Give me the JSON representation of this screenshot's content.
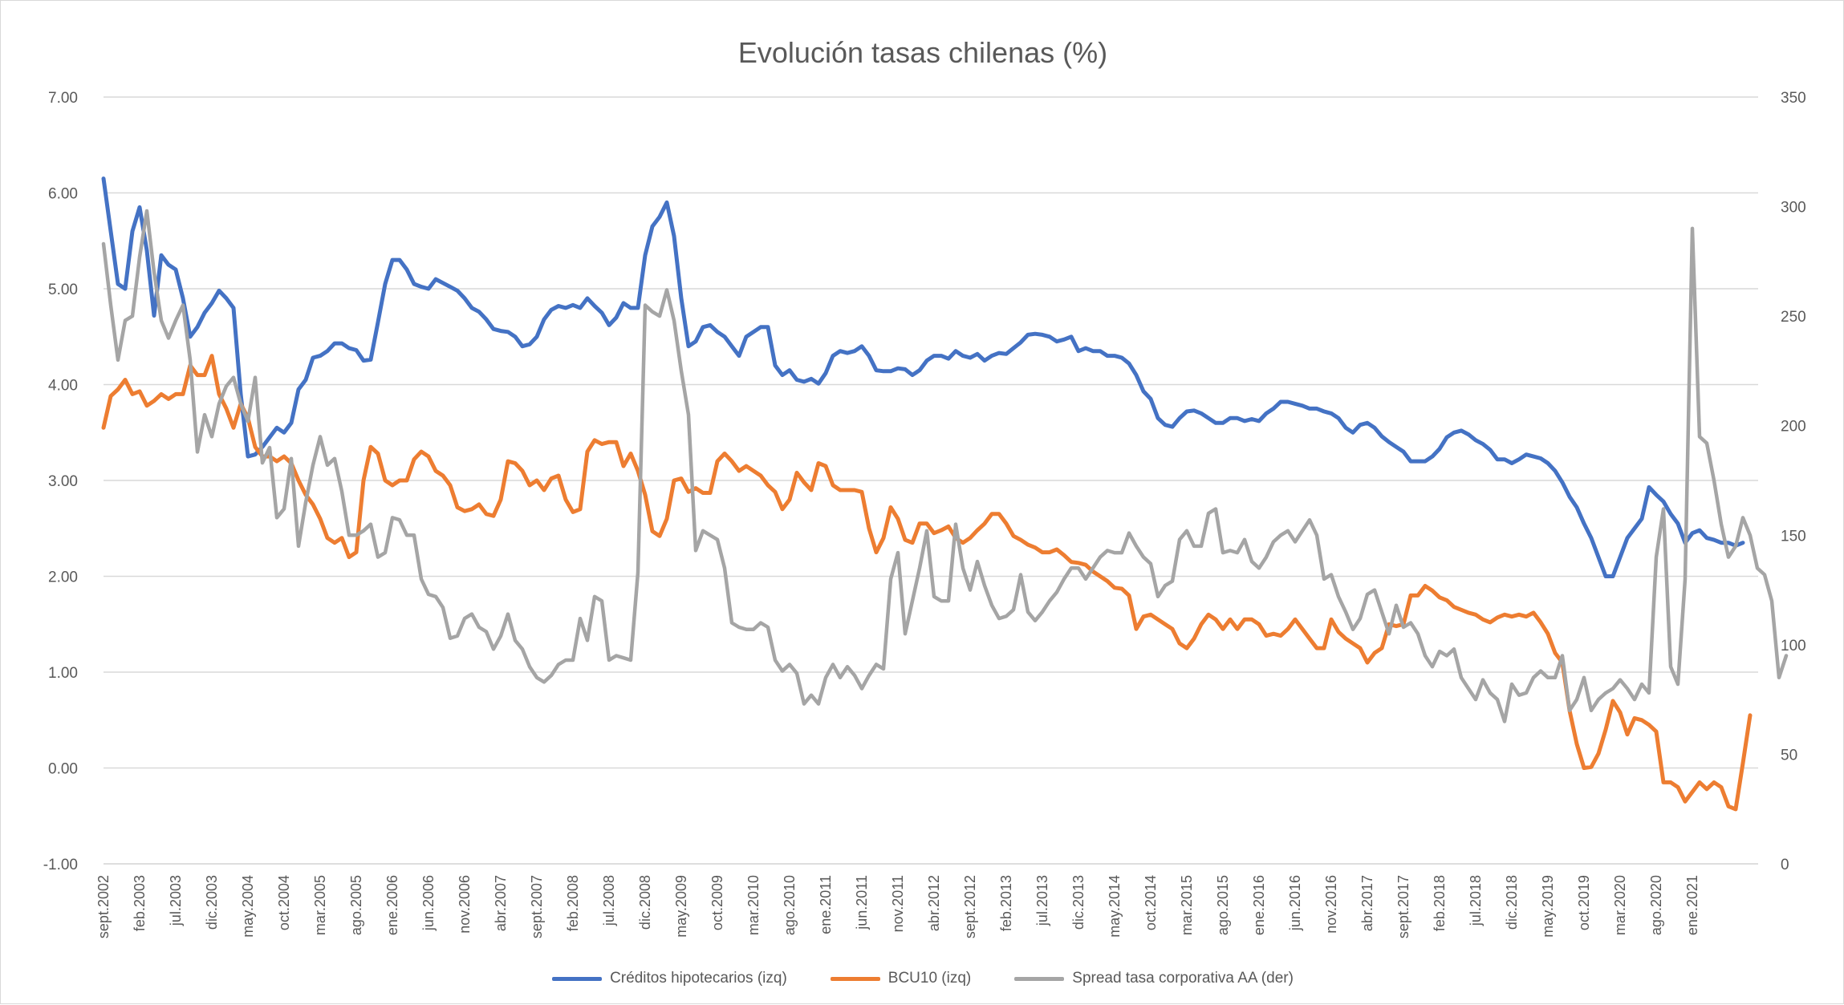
{
  "chart_data": {
    "type": "line",
    "title": "Evolución tasas chilenas (%)",
    "grid": true,
    "legend_position": "bottom",
    "y_left": {
      "min": -1,
      "max": 7,
      "step": 1,
      "ticks": [
        "-1.00",
        "0.00",
        "1.00",
        "2.00",
        "3.00",
        "4.00",
        "5.00",
        "6.00",
        "7.00"
      ]
    },
    "y_right": {
      "min": 0,
      "max": 350,
      "step": 50,
      "ticks": [
        "0",
        "50",
        "100",
        "150",
        "200",
        "250",
        "300",
        "350"
      ]
    },
    "x_tick_labels": [
      "sept.2002",
      "feb.2003",
      "jul.2003",
      "dic.2003",
      "may.2004",
      "oct.2004",
      "mar.2005",
      "ago.2005",
      "ene.2006",
      "jun.2006",
      "nov.2006",
      "abr.2007",
      "sept.2007",
      "feb.2008",
      "jul.2008",
      "dic.2008",
      "may.2009",
      "oct.2009",
      "mar.2010",
      "ago.2010",
      "ene.2011",
      "jun.2011",
      "nov.2011",
      "abr.2012",
      "sept.2012",
      "feb.2013",
      "jul.2013",
      "dic.2013",
      "may.2014",
      "oct.2014",
      "mar.2015",
      "ago.2015",
      "ene.2016",
      "jun.2016",
      "nov.2016",
      "abr.2017",
      "sept.2017",
      "feb.2018",
      "jul.2018",
      "dic.2018",
      "may.2019",
      "oct.2019",
      "mar.2020",
      "ago.2020",
      "ene.2021"
    ],
    "x_start": "2002-09",
    "x_interval_months": 1,
    "series": [
      {
        "name": "Créditos hipotecarios (izq)",
        "axis": "left",
        "color": "#4472C4",
        "values": [
          6.15,
          5.6,
          5.05,
          5.0,
          5.6,
          5.85,
          5.4,
          4.72,
          5.35,
          5.25,
          5.2,
          4.9,
          4.5,
          4.6,
          4.75,
          4.85,
          4.98,
          4.9,
          4.8,
          3.9,
          3.25,
          3.27,
          3.35,
          3.45,
          3.55,
          3.5,
          3.6,
          3.95,
          4.05,
          4.28,
          4.3,
          4.35,
          4.43,
          4.43,
          4.38,
          4.36,
          4.25,
          4.26,
          4.65,
          5.05,
          5.3,
          5.3,
          5.2,
          5.05,
          5.02,
          5.0,
          5.1,
          5.06,
          5.02,
          4.98,
          4.9,
          4.8,
          4.76,
          4.68,
          4.58,
          4.56,
          4.55,
          4.5,
          4.4,
          4.42,
          4.5,
          4.68,
          4.78,
          4.82,
          4.8,
          4.83,
          4.8,
          4.9,
          4.82,
          4.75,
          4.62,
          4.7,
          4.85,
          4.8,
          4.8,
          5.35,
          5.65,
          5.75,
          5.9,
          5.55,
          4.9,
          4.4,
          4.45,
          4.6,
          4.62,
          4.55,
          4.5,
          4.4,
          4.3,
          4.5,
          4.55,
          4.6,
          4.6,
          4.2,
          4.1,
          4.15,
          4.05,
          4.03,
          4.06,
          4.01,
          4.12,
          4.3,
          4.35,
          4.33,
          4.35,
          4.4,
          4.3,
          4.15,
          4.14,
          4.14,
          4.17,
          4.16,
          4.1,
          4.15,
          4.25,
          4.3,
          4.3,
          4.27,
          4.35,
          4.3,
          4.28,
          4.32,
          4.25,
          4.3,
          4.33,
          4.32,
          4.38,
          4.44,
          4.52,
          4.53,
          4.52,
          4.5,
          4.45,
          4.47,
          4.5,
          4.35,
          4.38,
          4.35,
          4.35,
          4.3,
          4.3,
          4.28,
          4.22,
          4.1,
          3.93,
          3.85,
          3.65,
          3.58,
          3.56,
          3.65,
          3.72,
          3.73,
          3.7,
          3.65,
          3.6,
          3.6,
          3.65,
          3.65,
          3.62,
          3.64,
          3.62,
          3.7,
          3.75,
          3.82,
          3.82,
          3.8,
          3.78,
          3.75,
          3.75,
          3.72,
          3.7,
          3.65,
          3.55,
          3.5,
          3.58,
          3.6,
          3.55,
          3.46,
          3.4,
          3.35,
          3.3,
          3.2,
          3.2,
          3.2,
          3.25,
          3.33,
          3.45,
          3.5,
          3.52,
          3.48,
          3.42,
          3.38,
          3.32,
          3.22,
          3.22,
          3.18,
          3.22,
          3.27,
          3.25,
          3.23,
          3.18,
          3.1,
          2.98,
          2.83,
          2.72,
          2.55,
          2.4,
          2.2,
          2.0,
          2.0,
          2.2,
          2.4,
          2.5,
          2.6,
          2.93,
          2.85,
          2.78,
          2.65,
          2.55,
          2.35,
          2.45,
          2.48,
          2.4,
          2.38,
          2.35,
          2.35,
          2.32,
          2.35
        ]
      },
      {
        "name": "BCU10 (izq)",
        "axis": "left",
        "color": "#ED7D31",
        "values": [
          3.55,
          3.88,
          3.95,
          4.05,
          3.9,
          3.93,
          3.78,
          3.83,
          3.9,
          3.85,
          3.9,
          3.9,
          4.2,
          4.1,
          4.1,
          4.3,
          3.9,
          3.75,
          3.55,
          3.8,
          3.65,
          3.35,
          3.25,
          3.25,
          3.2,
          3.25,
          3.18,
          3.0,
          2.85,
          2.75,
          2.6,
          2.4,
          2.35,
          2.4,
          2.2,
          2.25,
          3.0,
          3.35,
          3.28,
          3.0,
          2.95,
          3.0,
          3.0,
          3.22,
          3.3,
          3.25,
          3.1,
          3.05,
          2.95,
          2.72,
          2.68,
          2.7,
          2.75,
          2.65,
          2.63,
          2.8,
          3.2,
          3.18,
          3.1,
          2.95,
          3.0,
          2.9,
          3.02,
          3.05,
          2.8,
          2.67,
          2.7,
          3.3,
          3.42,
          3.38,
          3.4,
          3.4,
          3.15,
          3.28,
          3.1,
          2.85,
          2.47,
          2.42,
          2.6,
          3.0,
          3.02,
          2.88,
          2.92,
          2.87,
          2.87,
          3.2,
          3.28,
          3.2,
          3.1,
          3.15,
          3.1,
          3.05,
          2.95,
          2.88,
          2.7,
          2.8,
          3.08,
          2.98,
          2.9,
          3.18,
          3.15,
          2.95,
          2.9,
          2.9,
          2.9,
          2.88,
          2.5,
          2.25,
          2.4,
          2.72,
          2.6,
          2.38,
          2.35,
          2.55,
          2.55,
          2.45,
          2.48,
          2.52,
          2.4,
          2.35,
          2.4,
          2.48,
          2.55,
          2.65,
          2.65,
          2.55,
          2.42,
          2.38,
          2.33,
          2.3,
          2.25,
          2.25,
          2.28,
          2.22,
          2.15,
          2.14,
          2.12,
          2.05,
          2.0,
          1.95,
          1.88,
          1.87,
          1.8,
          1.45,
          1.58,
          1.6,
          1.55,
          1.5,
          1.45,
          1.3,
          1.25,
          1.35,
          1.5,
          1.6,
          1.55,
          1.45,
          1.55,
          1.45,
          1.55,
          1.55,
          1.5,
          1.38,
          1.4,
          1.38,
          1.45,
          1.55,
          1.45,
          1.35,
          1.25,
          1.25,
          1.55,
          1.42,
          1.35,
          1.3,
          1.25,
          1.1,
          1.2,
          1.25,
          1.5,
          1.48,
          1.5,
          1.8,
          1.8,
          1.9,
          1.85,
          1.78,
          1.75,
          1.68,
          1.65,
          1.62,
          1.6,
          1.55,
          1.52,
          1.57,
          1.6,
          1.58,
          1.6,
          1.58,
          1.62,
          1.52,
          1.4,
          1.2,
          1.1,
          0.6,
          0.25,
          0.0,
          0.01,
          0.15,
          0.4,
          0.7,
          0.58,
          0.35,
          0.52,
          0.5,
          0.45,
          0.38,
          -0.15,
          -0.15,
          -0.2,
          -0.35,
          -0.25,
          -0.15,
          -0.22,
          -0.15,
          -0.2,
          -0.4,
          -0.43,
          0.05,
          0.55
        ]
      },
      {
        "name": "Spread tasa corporativa AA (der)",
        "axis": "right",
        "color": "#A5A5A5",
        "values": [
          283,
          255,
          230,
          248,
          250,
          277,
          298,
          270,
          248,
          240,
          248,
          255,
          230,
          188,
          205,
          195,
          210,
          218,
          222,
          210,
          202,
          222,
          183,
          190,
          158,
          162,
          185,
          145,
          165,
          182,
          195,
          182,
          185,
          170,
          150,
          150,
          152,
          155,
          140,
          142,
          158,
          157,
          150,
          150,
          130,
          123,
          122,
          117,
          103,
          104,
          112,
          114,
          108,
          106,
          98,
          104,
          114,
          102,
          98,
          90,
          85,
          83,
          86,
          91,
          93,
          93,
          112,
          102,
          122,
          120,
          93,
          95,
          94,
          93,
          133,
          255,
          252,
          250,
          262,
          248,
          225,
          205,
          143,
          152,
          150,
          148,
          135,
          110,
          108,
          107,
          107,
          110,
          108,
          93,
          88,
          91,
          87,
          73,
          77,
          73,
          85,
          91,
          85,
          90,
          86,
          80,
          86,
          91,
          89,
          130,
          142,
          105,
          120,
          135,
          152,
          122,
          120,
          120,
          155,
          135,
          125,
          138,
          127,
          118,
          112,
          113,
          116,
          132,
          115,
          111,
          115,
          120,
          124,
          130,
          135,
          135,
          130,
          135,
          140,
          143,
          142,
          142,
          151,
          145,
          140,
          137,
          122,
          127,
          129,
          148,
          152,
          145,
          145,
          160,
          162,
          142,
          143,
          142,
          148,
          138,
          135,
          140,
          147,
          150,
          152,
          147,
          152,
          157,
          150,
          130,
          132,
          122,
          115,
          107,
          112,
          123,
          125,
          115,
          105,
          118,
          108,
          110,
          105,
          95,
          90,
          97,
          95,
          98,
          85,
          80,
          75,
          84,
          78,
          75,
          65,
          82,
          77,
          78,
          85,
          88,
          85,
          85,
          95,
          70,
          75,
          85,
          70,
          75,
          78,
          80,
          84,
          80,
          75,
          82,
          78,
          140,
          162,
          90,
          82,
          130,
          290,
          195,
          192,
          175,
          155,
          140,
          145,
          158,
          150,
          135,
          132,
          120,
          85,
          95
        ]
      }
    ]
  }
}
